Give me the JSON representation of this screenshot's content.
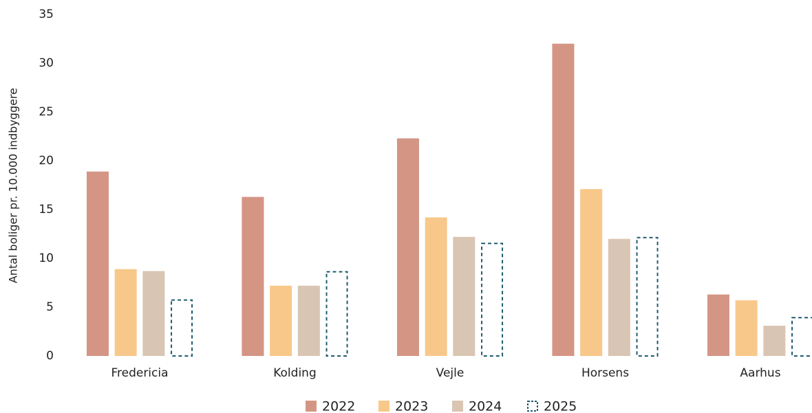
{
  "chart_data": {
    "type": "bar",
    "y_label": "Antal boliger pr. 10.000  indbyggere",
    "categories": [
      "Fredericia",
      "Kolding",
      "Vejle",
      "Horsens",
      "Aarhus"
    ],
    "series": [
      {
        "name": "2022",
        "color": "#d49585",
        "values": [
          18.9,
          16.3,
          22.3,
          32,
          6.3
        ]
      },
      {
        "name": "2023",
        "color": "#f8c88a",
        "values": [
          8.9,
          7.2,
          14.2,
          17.1,
          5.7
        ]
      },
      {
        "name": "2024",
        "color": "#d9c5b3",
        "values": [
          8.7,
          7.2,
          12.2,
          12.0,
          3.1
        ]
      },
      {
        "name": "2025",
        "color": "#1f5a6e",
        "dashed": true,
        "values": [
          5.8,
          8.7,
          11.6,
          12.2,
          4.0
        ]
      }
    ],
    "ylim": [
      0,
      35
    ],
    "yticks": [
      0,
      5,
      10,
      15,
      20,
      25,
      30,
      35
    ],
    "grid": false,
    "legend": "bottom"
  }
}
